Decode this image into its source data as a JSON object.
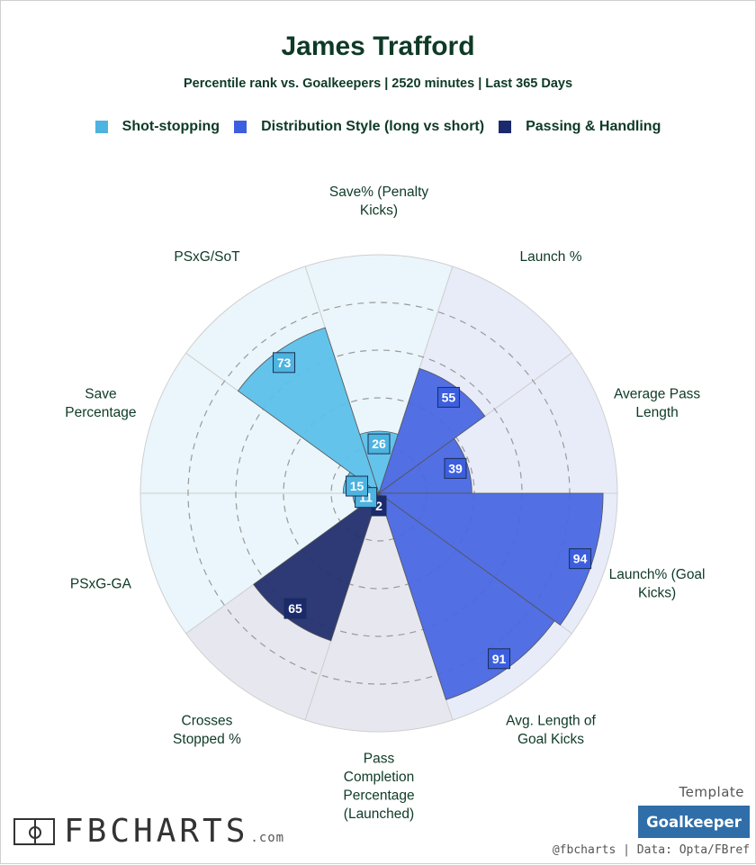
{
  "header": {
    "title": "James Trafford",
    "subtitle": "Percentile rank vs. Goalkeepers | 2520 minutes | Last 365 Days"
  },
  "legend": [
    {
      "label": "Shot-stopping",
      "color": "#4db3e0"
    },
    {
      "label": "Distribution Style (long vs short)",
      "color": "#3c5fe0"
    },
    {
      "label": "Passing & Handling",
      "color": "#1a2a6c"
    }
  ],
  "chart_data": {
    "type": "polar-bar",
    "title": "James Trafford",
    "subtitle": "Percentile rank vs. Goalkeepers | 2520 minutes | Last 365 Days",
    "rlim": [
      0,
      100
    ],
    "grid": true,
    "legend_position": "top",
    "categories": [
      {
        "label": "Save% (Penalty Kicks)",
        "group": "Shot-stopping",
        "value": 26
      },
      {
        "label": "Launch %",
        "group": "Distribution Style (long vs short)",
        "value": 55
      },
      {
        "label": "Average Pass Length",
        "group": "Distribution Style (long vs short)",
        "value": 39
      },
      {
        "label": "Launch% (Goal Kicks)",
        "group": "Distribution Style (long vs short)",
        "value": 94
      },
      {
        "label": "Avg. Length of Goal Kicks",
        "group": "Distribution Style (long vs short)",
        "value": 91
      },
      {
        "label": "Pass Completion Percentage (Launched)",
        "group": "Passing & Handling",
        "value": 2
      },
      {
        "label": "Crosses Stopped %",
        "group": "Passing & Handling",
        "value": 65
      },
      {
        "label": "PSxG-GA",
        "group": "Shot-stopping",
        "value": 11
      },
      {
        "label": "Save Percentage",
        "group": "Shot-stopping",
        "value": 15
      },
      {
        "label": "PSxG/SoT",
        "group": "Shot-stopping",
        "value": 73
      }
    ]
  },
  "footer": {
    "template_label": "Template",
    "template_button": "Goalkeeper",
    "credits": "@fbcharts | Data: Opta/FBref",
    "logo_text": "FBCHARTS",
    "logo_suffix": ".com"
  }
}
